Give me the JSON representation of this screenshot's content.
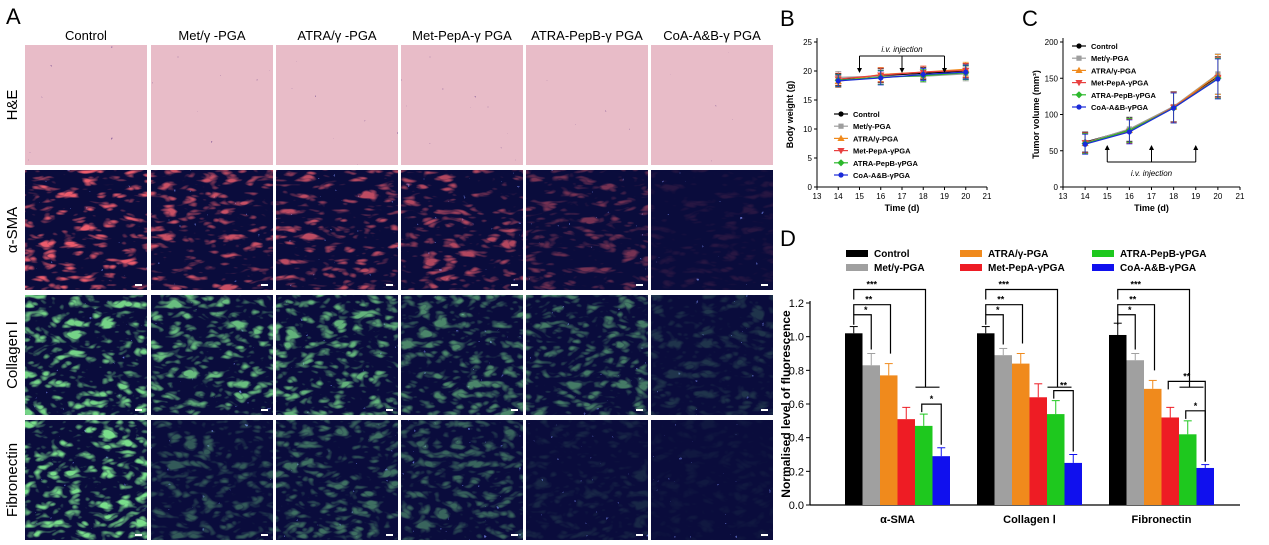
{
  "panel_a": {
    "label": "A",
    "columns": [
      "Control",
      "Met/γ -PGA",
      "ATRA/γ -PGA",
      "Met-PepA-γ PGA",
      "ATRA-PepB-γ PGA",
      "CoA-A&B-γ PGA"
    ],
    "rows": [
      "H&E",
      "α-SMA",
      "Collagen Ⅰ",
      "Fibronectin"
    ],
    "colors": {
      "he_bg": "#e8bcc8",
      "he_nuclei": "#4a2a55",
      "nuclear_blue": "#1c2a8c",
      "alpha_sma": "#e0202a",
      "green": "#35c24a"
    }
  },
  "chart_data": [
    {
      "panel_label": "B",
      "type": "line",
      "xlabel": "Time (d)",
      "ylabel": "Body weight (g)",
      "xlim": [
        13,
        21
      ],
      "ylim": [
        0,
        25
      ],
      "xticks": [
        13,
        14,
        15,
        16,
        17,
        18,
        19,
        20,
        21
      ],
      "yticks": [
        0,
        5,
        10,
        15,
        20,
        25
      ],
      "x": [
        14,
        16,
        18,
        20
      ],
      "annotation": {
        "text": "i.v. injection",
        "arrows_x": [
          15,
          17,
          19
        ]
      },
      "series": [
        {
          "name": "Control",
          "color": "#000000",
          "marker": "circle",
          "values": [
            18.5,
            19.2,
            19.6,
            20.0
          ]
        },
        {
          "name": "Met/γ-PGA",
          "color": "#9e9e9e",
          "marker": "square",
          "values": [
            18.9,
            19.1,
            19.1,
            19.5
          ]
        },
        {
          "name": "ATRA/γ-PGA",
          "color": "#f08a1c",
          "marker": "triangle-up",
          "values": [
            18.2,
            19.4,
            19.8,
            20.3
          ]
        },
        {
          "name": "Met-PepA-γPGA",
          "color": "#e84040",
          "marker": "triangle-down",
          "values": [
            18.6,
            19.3,
            19.8,
            20.1
          ]
        },
        {
          "name": "ATRA-PepB-γPGA",
          "color": "#2cb82c",
          "marker": "diamond",
          "values": [
            18.4,
            18.9,
            19.2,
            19.7
          ]
        },
        {
          "name": "CoA-A&B-γPGA",
          "color": "#1a2ad8",
          "marker": "circle",
          "values": [
            18.3,
            18.8,
            19.4,
            19.8
          ]
        }
      ]
    },
    {
      "panel_label": "C",
      "type": "line",
      "xlabel": "Time (d)",
      "ylabel": "Tumor volume (mm³)",
      "xlim": [
        13,
        21
      ],
      "ylim": [
        0,
        200
      ],
      "xticks": [
        13,
        14,
        15,
        16,
        17,
        18,
        19,
        20,
        21
      ],
      "yticks": [
        0,
        50,
        100,
        150,
        200
      ],
      "x": [
        14,
        16,
        18,
        20
      ],
      "annotation": {
        "text": "i.v. injection",
        "arrows_x": [
          15,
          17,
          19
        ]
      },
      "series": [
        {
          "name": "Control",
          "color": "#000000",
          "marker": "circle",
          "values": [
            62,
            79,
            111,
            152
          ]
        },
        {
          "name": "Met/γ-PGA",
          "color": "#9e9e9e",
          "marker": "square",
          "values": [
            61,
            80,
            111,
            156
          ]
        },
        {
          "name": "ATRA/γ-PGA",
          "color": "#f08a1c",
          "marker": "triangle-up",
          "values": [
            60,
            78,
            110,
            155
          ]
        },
        {
          "name": "Met-PepA-γPGA",
          "color": "#e84040",
          "marker": "triangle-down",
          "values": [
            61,
            77,
            110,
            151
          ]
        },
        {
          "name": "ATRA-PepB-γPGA",
          "color": "#2cb82c",
          "marker": "diamond",
          "values": [
            60,
            78,
            109,
            150
          ]
        },
        {
          "name": "CoA-A&B-γPGA",
          "color": "#1a2ad8",
          "marker": "circle",
          "values": [
            59,
            76,
            109,
            149
          ]
        }
      ]
    },
    {
      "panel_label": "D",
      "type": "bar",
      "ylabel": "Normalised level of fluorescence",
      "ylim": [
        0,
        1.2
      ],
      "yticks": [
        0.0,
        0.2,
        0.4,
        0.6,
        0.8,
        1.0,
        1.2
      ],
      "ytick_labels": [
        "0.0",
        "0.2",
        "0.4",
        "0.6",
        "0.8",
        "1.0",
        "1.2"
      ],
      "categories": [
        "α-SMA",
        "Collagen Ⅰ",
        "Fibronectin"
      ],
      "series": [
        {
          "name": "Control",
          "color": "#000000",
          "values": [
            1.02,
            1.02,
            1.01
          ]
        },
        {
          "name": "Met/γ-PGA",
          "color": "#a0a0a0",
          "values": [
            0.83,
            0.89,
            0.86
          ]
        },
        {
          "name": "ATRA/γ-PGA",
          "color": "#f08a1c",
          "values": [
            0.77,
            0.84,
            0.69
          ]
        },
        {
          "name": "Met-PepA-γPGA",
          "color": "#ee1c24",
          "values": [
            0.51,
            0.64,
            0.52
          ]
        },
        {
          "name": "ATRA-PepB-γPGA",
          "color": "#1ec81e",
          "values": [
            0.47,
            0.54,
            0.42
          ]
        },
        {
          "name": "CoA-A&B-γPGA",
          "color": "#1010ee",
          "values": [
            0.29,
            0.25,
            0.22
          ]
        }
      ],
      "errors": [
        [
          0.04,
          0.04,
          0.07
        ],
        [
          0.07,
          0.04,
          0.04
        ],
        [
          0.07,
          0.06,
          0.05
        ],
        [
          0.07,
          0.08,
          0.06
        ],
        [
          0.07,
          0.08,
          0.08
        ],
        [
          0.05,
          0.05,
          0.02
        ]
      ],
      "significance_top": [
        "*",
        "**",
        "***"
      ],
      "significance_bottom": [
        [
          "*"
        ],
        [
          "**"
        ],
        [
          "*",
          "**"
        ]
      ]
    }
  ]
}
